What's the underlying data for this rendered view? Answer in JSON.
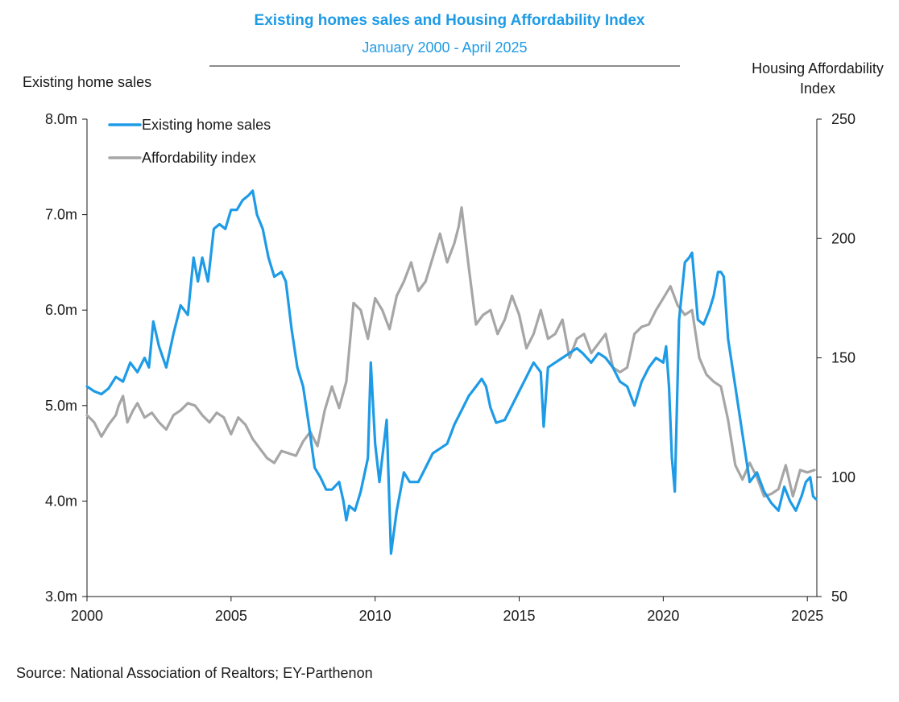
{
  "chart_data": {
    "type": "line",
    "title": "Existing homes sales and Housing Affordability Index",
    "subtitle": "January 2000 - April 2025",
    "source": "Source: National Association of Realtors; EY-Parthenon",
    "y_left": {
      "label": "Existing home sales",
      "ylim": [
        3.0,
        8.0
      ],
      "ticks": [
        3.0,
        4.0,
        5.0,
        6.0,
        7.0,
        8.0
      ],
      "tick_labels": [
        "3.0m",
        "4.0m",
        "5.0m",
        "6.0m",
        "7.0m",
        "8.0m"
      ]
    },
    "y_right": {
      "label_lines": [
        "Housing Affordability",
        "Index"
      ],
      "ylim": [
        50,
        250
      ],
      "ticks": [
        50,
        100,
        150,
        200,
        250
      ],
      "tick_labels": [
        "50",
        "100",
        "150",
        "200",
        "250"
      ]
    },
    "x_axis": {
      "xlim": [
        2000.0,
        2025.33
      ],
      "ticks": [
        2000,
        2005,
        2010,
        2015,
        2020,
        2025
      ],
      "tick_labels": [
        "2000",
        "2005",
        "2010",
        "2015",
        "2020",
        "2025"
      ]
    },
    "legend": {
      "position": "top-left"
    },
    "grid": false,
    "series": [
      {
        "name": "Existing home sales",
        "axis": "left",
        "color": "#1e9be6",
        "points": [
          [
            2000.0,
            5.2
          ],
          [
            2000.25,
            5.15
          ],
          [
            2000.5,
            5.12
          ],
          [
            2000.75,
            5.18
          ],
          [
            2001.0,
            5.3
          ],
          [
            2001.25,
            5.25
          ],
          [
            2001.5,
            5.45
          ],
          [
            2001.75,
            5.35
          ],
          [
            2002.0,
            5.5
          ],
          [
            2002.15,
            5.4
          ],
          [
            2002.3,
            5.88
          ],
          [
            2002.5,
            5.62
          ],
          [
            2002.75,
            5.4
          ],
          [
            2003.0,
            5.75
          ],
          [
            2003.25,
            6.05
          ],
          [
            2003.5,
            5.95
          ],
          [
            2003.7,
            6.55
          ],
          [
            2003.85,
            6.3
          ],
          [
            2004.0,
            6.55
          ],
          [
            2004.2,
            6.3
          ],
          [
            2004.4,
            6.85
          ],
          [
            2004.6,
            6.9
          ],
          [
            2004.8,
            6.85
          ],
          [
            2005.0,
            7.05
          ],
          [
            2005.2,
            7.05
          ],
          [
            2005.4,
            7.15
          ],
          [
            2005.6,
            7.2
          ],
          [
            2005.75,
            7.25
          ],
          [
            2005.9,
            7.0
          ],
          [
            2006.1,
            6.85
          ],
          [
            2006.3,
            6.55
          ],
          [
            2006.5,
            6.35
          ],
          [
            2006.75,
            6.4
          ],
          [
            2006.9,
            6.3
          ],
          [
            2007.1,
            5.8
          ],
          [
            2007.3,
            5.4
          ],
          [
            2007.5,
            5.2
          ],
          [
            2007.7,
            4.8
          ],
          [
            2007.9,
            4.35
          ],
          [
            2008.1,
            4.25
          ],
          [
            2008.3,
            4.12
          ],
          [
            2008.5,
            4.12
          ],
          [
            2008.75,
            4.2
          ],
          [
            2008.9,
            4.0
          ],
          [
            2009.0,
            3.8
          ],
          [
            2009.1,
            3.95
          ],
          [
            2009.3,
            3.9
          ],
          [
            2009.5,
            4.1
          ],
          [
            2009.75,
            4.45
          ],
          [
            2009.85,
            5.45
          ],
          [
            2010.0,
            4.6
          ],
          [
            2010.15,
            4.2
          ],
          [
            2010.4,
            4.85
          ],
          [
            2010.55,
            3.45
          ],
          [
            2010.75,
            3.9
          ],
          [
            2011.0,
            4.3
          ],
          [
            2011.2,
            4.2
          ],
          [
            2011.5,
            4.2
          ],
          [
            2011.75,
            4.35
          ],
          [
            2012.0,
            4.5
          ],
          [
            2012.25,
            4.55
          ],
          [
            2012.5,
            4.6
          ],
          [
            2012.75,
            4.8
          ],
          [
            2013.0,
            4.95
          ],
          [
            2013.25,
            5.1
          ],
          [
            2013.5,
            5.2
          ],
          [
            2013.7,
            5.28
          ],
          [
            2013.85,
            5.2
          ],
          [
            2014.0,
            4.98
          ],
          [
            2014.2,
            4.82
          ],
          [
            2014.5,
            4.85
          ],
          [
            2014.75,
            5.0
          ],
          [
            2015.0,
            5.15
          ],
          [
            2015.25,
            5.3
          ],
          [
            2015.5,
            5.45
          ],
          [
            2015.75,
            5.35
          ],
          [
            2015.85,
            4.78
          ],
          [
            2016.0,
            5.4
          ],
          [
            2016.25,
            5.45
          ],
          [
            2016.5,
            5.5
          ],
          [
            2016.75,
            5.55
          ],
          [
            2017.0,
            5.6
          ],
          [
            2017.2,
            5.55
          ],
          [
            2017.5,
            5.45
          ],
          [
            2017.75,
            5.55
          ],
          [
            2018.0,
            5.5
          ],
          [
            2018.25,
            5.4
          ],
          [
            2018.5,
            5.25
          ],
          [
            2018.75,
            5.2
          ],
          [
            2019.0,
            5.0
          ],
          [
            2019.25,
            5.25
          ],
          [
            2019.5,
            5.4
          ],
          [
            2019.75,
            5.5
          ],
          [
            2020.0,
            5.45
          ],
          [
            2020.1,
            5.62
          ],
          [
            2020.2,
            5.2
          ],
          [
            2020.3,
            4.45
          ],
          [
            2020.4,
            4.1
          ],
          [
            2020.55,
            5.9
          ],
          [
            2020.75,
            6.5
          ],
          [
            2020.9,
            6.55
          ],
          [
            2021.0,
            6.6
          ],
          [
            2021.2,
            5.9
          ],
          [
            2021.4,
            5.85
          ],
          [
            2021.6,
            6.0
          ],
          [
            2021.75,
            6.15
          ],
          [
            2021.9,
            6.4
          ],
          [
            2022.0,
            6.4
          ],
          [
            2022.1,
            6.35
          ],
          [
            2022.25,
            5.7
          ],
          [
            2022.5,
            5.2
          ],
          [
            2022.75,
            4.7
          ],
          [
            2023.0,
            4.2
          ],
          [
            2023.25,
            4.3
          ],
          [
            2023.5,
            4.1
          ],
          [
            2023.75,
            3.98
          ],
          [
            2024.0,
            3.9
          ],
          [
            2024.2,
            4.15
          ],
          [
            2024.4,
            4.0
          ],
          [
            2024.6,
            3.9
          ],
          [
            2024.8,
            4.05
          ],
          [
            2024.95,
            4.2
          ],
          [
            2025.1,
            4.25
          ],
          [
            2025.2,
            4.05
          ],
          [
            2025.3,
            4.02
          ]
        ]
      },
      {
        "name": "Affordability index",
        "axis": "right",
        "color": "#a6a6a6",
        "points": [
          [
            2000.0,
            126
          ],
          [
            2000.25,
            123
          ],
          [
            2000.5,
            117
          ],
          [
            2000.75,
            122
          ],
          [
            2001.0,
            126
          ],
          [
            2001.1,
            130
          ],
          [
            2001.25,
            134
          ],
          [
            2001.4,
            123
          ],
          [
            2001.6,
            128
          ],
          [
            2001.75,
            131
          ],
          [
            2002.0,
            125
          ],
          [
            2002.25,
            127
          ],
          [
            2002.5,
            123
          ],
          [
            2002.75,
            120
          ],
          [
            2003.0,
            126
          ],
          [
            2003.25,
            128
          ],
          [
            2003.5,
            131
          ],
          [
            2003.75,
            130
          ],
          [
            2004.0,
            126
          ],
          [
            2004.25,
            123
          ],
          [
            2004.5,
            127
          ],
          [
            2004.75,
            125
          ],
          [
            2005.0,
            118
          ],
          [
            2005.25,
            125
          ],
          [
            2005.5,
            122
          ],
          [
            2005.75,
            116
          ],
          [
            2006.0,
            112
          ],
          [
            2006.25,
            108
          ],
          [
            2006.5,
            106
          ],
          [
            2006.75,
            111
          ],
          [
            2007.0,
            110
          ],
          [
            2007.25,
            109
          ],
          [
            2007.5,
            115
          ],
          [
            2007.75,
            119
          ],
          [
            2008.0,
            113
          ],
          [
            2008.25,
            128
          ],
          [
            2008.5,
            138
          ],
          [
            2008.75,
            129
          ],
          [
            2009.0,
            140
          ],
          [
            2009.25,
            173
          ],
          [
            2009.5,
            170
          ],
          [
            2009.75,
            158
          ],
          [
            2010.0,
            175
          ],
          [
            2010.25,
            170
          ],
          [
            2010.5,
            162
          ],
          [
            2010.75,
            176
          ],
          [
            2011.0,
            182
          ],
          [
            2011.25,
            190
          ],
          [
            2011.5,
            178
          ],
          [
            2011.75,
            182
          ],
          [
            2012.0,
            192
          ],
          [
            2012.25,
            202
          ],
          [
            2012.5,
            190
          ],
          [
            2012.75,
            198
          ],
          [
            2012.9,
            205
          ],
          [
            2013.0,
            213
          ],
          [
            2013.25,
            188
          ],
          [
            2013.5,
            164
          ],
          [
            2013.75,
            168
          ],
          [
            2014.0,
            170
          ],
          [
            2014.25,
            160
          ],
          [
            2014.5,
            166
          ],
          [
            2014.75,
            176
          ],
          [
            2015.0,
            168
          ],
          [
            2015.25,
            154
          ],
          [
            2015.5,
            160
          ],
          [
            2015.75,
            170
          ],
          [
            2016.0,
            158
          ],
          [
            2016.25,
            160
          ],
          [
            2016.5,
            166
          ],
          [
            2016.75,
            150
          ],
          [
            2017.0,
            158
          ],
          [
            2017.25,
            160
          ],
          [
            2017.5,
            152
          ],
          [
            2017.75,
            156
          ],
          [
            2018.0,
            160
          ],
          [
            2018.25,
            146
          ],
          [
            2018.5,
            144
          ],
          [
            2018.75,
            146
          ],
          [
            2019.0,
            160
          ],
          [
            2019.25,
            163
          ],
          [
            2019.5,
            164
          ],
          [
            2019.75,
            170
          ],
          [
            2020.0,
            175
          ],
          [
            2020.25,
            180
          ],
          [
            2020.5,
            172
          ],
          [
            2020.75,
            168
          ],
          [
            2021.0,
            170
          ],
          [
            2021.25,
            150
          ],
          [
            2021.5,
            143
          ],
          [
            2021.75,
            140
          ],
          [
            2022.0,
            138
          ],
          [
            2022.25,
            124
          ],
          [
            2022.5,
            105
          ],
          [
            2022.75,
            99
          ],
          [
            2023.0,
            106
          ],
          [
            2023.25,
            100
          ],
          [
            2023.5,
            92
          ],
          [
            2023.75,
            93
          ],
          [
            2024.0,
            95
          ],
          [
            2024.25,
            105
          ],
          [
            2024.5,
            92
          ],
          [
            2024.75,
            103
          ],
          [
            2025.0,
            102
          ],
          [
            2025.25,
            103
          ]
        ]
      }
    ]
  }
}
